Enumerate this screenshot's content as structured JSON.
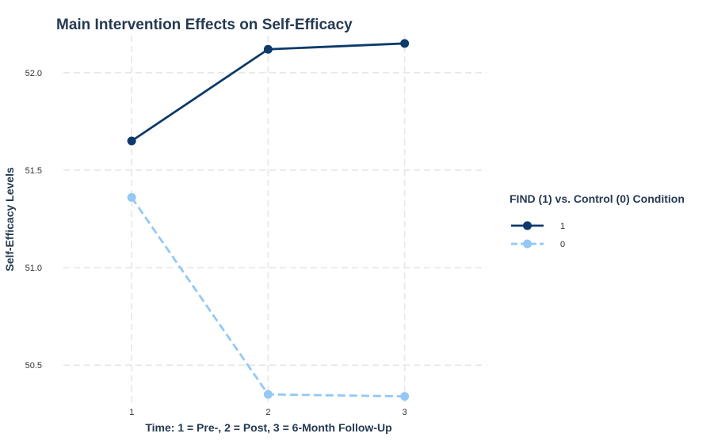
{
  "chart_data": {
    "type": "line",
    "title": "Main Intervention Effects on Self-Efficacy",
    "xlabel": "Time: 1 = Pre-, 2 = Post, 3 = 6-Month Follow-Up",
    "ylabel": "Self-Efficacy Levels",
    "x": [
      1,
      2,
      3
    ],
    "x_tick_labels": [
      "1",
      "2",
      "3"
    ],
    "xlim": [
      0.5,
      3.6
    ],
    "ylim": [
      50.31,
      52.19
    ],
    "y_ticks": [
      50.5,
      51.0,
      51.5,
      52.0
    ],
    "y_tick_labels": [
      "50.5",
      "51.0",
      "51.5",
      "52.0"
    ],
    "grid": true,
    "legend": {
      "title": "FIND (1) vs. Control (0) Condition",
      "placement": "right"
    },
    "series": [
      {
        "name": "1",
        "values": [
          51.65,
          52.12,
          52.15
        ],
        "color": "#0d3a6b",
        "line_style": "solid"
      },
      {
        "name": "0",
        "values": [
          51.36,
          50.35,
          50.34
        ],
        "color": "#94c8f5",
        "line_style": "dashed"
      }
    ]
  }
}
